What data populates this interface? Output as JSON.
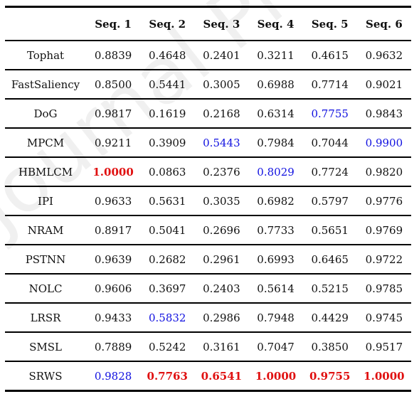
{
  "table": {
    "headers": [
      "",
      "Seq. 1",
      "Seq. 2",
      "Seq. 3",
      "Seq. 4",
      "Seq. 5",
      "Seq. 6"
    ],
    "rows": [
      {
        "method": "Tophat",
        "values": [
          "0.8839",
          "0.4648",
          "0.2401",
          "0.3211",
          "0.4615",
          "0.9632"
        ],
        "styles": [
          "",
          "",
          "",
          "",
          "",
          ""
        ]
      },
      {
        "method": "FastSaliency",
        "values": [
          "0.8500",
          "0.5441",
          "0.3005",
          "0.6988",
          "0.7714",
          "0.9021"
        ],
        "styles": [
          "",
          "",
          "",
          "",
          "",
          ""
        ]
      },
      {
        "method": "DoG",
        "values": [
          "0.9817",
          "0.1619",
          "0.2168",
          "0.6314",
          "0.7755",
          "0.9843"
        ],
        "styles": [
          "",
          "",
          "",
          "",
          "blue",
          ""
        ]
      },
      {
        "method": "MPCM",
        "values": [
          "0.9211",
          "0.3909",
          "0.5443",
          "0.7984",
          "0.7044",
          "0.9900"
        ],
        "styles": [
          "",
          "",
          "blue",
          "",
          "",
          "blue"
        ]
      },
      {
        "method": "HBMLCM",
        "values": [
          "1.0000",
          "0.0863",
          "0.2376",
          "0.8029",
          "0.7724",
          "0.9820"
        ],
        "styles": [
          "red",
          "",
          "",
          "blue",
          "",
          ""
        ]
      },
      {
        "method": "IPI",
        "values": [
          "0.9633",
          "0.5631",
          "0.3035",
          "0.6982",
          "0.5797",
          "0.9776"
        ],
        "styles": [
          "",
          "",
          "",
          "",
          "",
          ""
        ]
      },
      {
        "method": "NRAM",
        "values": [
          "0.8917",
          "0.5041",
          "0.2696",
          "0.7733",
          "0.5651",
          "0.9769"
        ],
        "styles": [
          "",
          "",
          "",
          "",
          "",
          ""
        ]
      },
      {
        "method": "PSTNN",
        "values": [
          "0.9639",
          "0.2682",
          "0.2961",
          "0.6993",
          "0.6465",
          "0.9722"
        ],
        "styles": [
          "",
          "",
          "",
          "",
          "",
          ""
        ]
      },
      {
        "method": "NOLC",
        "values": [
          "0.9606",
          "0.3697",
          "0.2403",
          "0.5614",
          "0.5215",
          "0.9785"
        ],
        "styles": [
          "",
          "",
          "",
          "",
          "",
          ""
        ]
      },
      {
        "method": "LRSR",
        "values": [
          "0.9433",
          "0.5832",
          "0.2986",
          "0.7948",
          "0.4429",
          "0.9745"
        ],
        "styles": [
          "",
          "blue",
          "",
          "",
          "",
          ""
        ]
      },
      {
        "method": "SMSL",
        "values": [
          "0.7889",
          "0.5242",
          "0.3161",
          "0.7047",
          "0.3850",
          "0.9517"
        ],
        "styles": [
          "",
          "",
          "",
          "",
          "",
          ""
        ]
      },
      {
        "method": "SRWS",
        "values": [
          "0.9828",
          "0.7763",
          "0.6541",
          "1.0000",
          "0.9755",
          "1.0000"
        ],
        "styles": [
          "blue",
          "red",
          "red",
          "red",
          "red",
          "red"
        ]
      }
    ]
  },
  "colors": {
    "best": "#e01010",
    "second": "#1010e0"
  },
  "watermark": "Journal Pre-proof"
}
